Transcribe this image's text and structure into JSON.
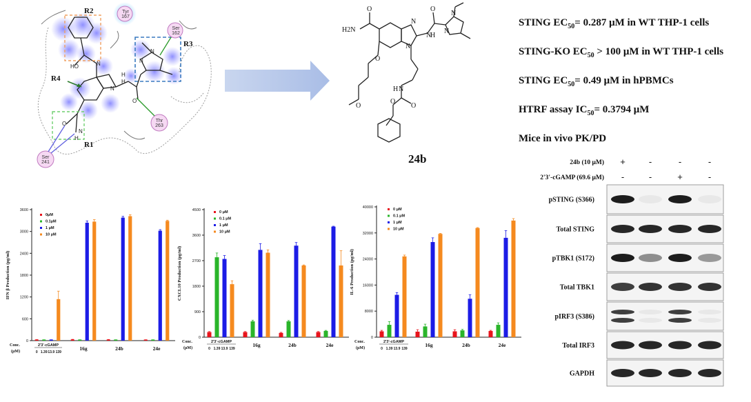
{
  "docking": {
    "r_labels": [
      "R2",
      "R3",
      "R4",
      "R1"
    ],
    "residues": [
      "Tyr 167",
      "Ser 162",
      "Thr 263",
      "Ser 241"
    ],
    "atom_labels": [
      "HO",
      "N",
      "H",
      "O",
      "N",
      "H",
      "O",
      "N",
      "H",
      "N",
      "N"
    ]
  },
  "compound": {
    "label": "24b",
    "atoms": [
      "H2N",
      "O",
      "N",
      "N",
      "N",
      "N",
      "H",
      "O",
      "N",
      "O",
      "O",
      "O",
      "N",
      "H",
      "O"
    ]
  },
  "properties": [
    {
      "pre": "STING EC",
      "sub": "50",
      "post": "= 0.287 μM in WT THP-1 cells"
    },
    {
      "pre": "STING-KO EC",
      "sub": "50",
      "post": " > 100 μM in WT THP-1 cells"
    },
    {
      "pre": "STING EC",
      "sub": "50",
      "post": "= 0.49 μM in hPBMCs"
    },
    {
      "pre": "HTRF assay IC",
      "sub": "50",
      "post": "= 0.3794 μM"
    },
    {
      "pre": "Mice in vivo PK/PD",
      "sub": "",
      "post": ""
    }
  ],
  "western": {
    "header_rows": [
      {
        "label": "24b (10 μM)",
        "marks": [
          "+",
          "-",
          "-",
          "-"
        ]
      },
      {
        "label": "2'3'-cGAMP (69.6 μM)",
        "marks": [
          "-",
          "-",
          "+",
          "-"
        ]
      }
    ],
    "blots": [
      {
        "label": "pSTING (S366)",
        "bands": [
          0.95,
          0.05,
          0.95,
          0.05
        ]
      },
      {
        "label": "Total STING",
        "bands": [
          0.9,
          0.9,
          0.9,
          0.9
        ]
      },
      {
        "label": "pTBK1 (S172)",
        "bands": [
          0.95,
          0.45,
          0.95,
          0.4
        ]
      },
      {
        "label": "Total TBK1",
        "bands": [
          0.8,
          0.85,
          0.85,
          0.85
        ]
      },
      {
        "label": "pIRF3 (S386)",
        "bands": [
          0.8,
          0.05,
          0.8,
          0.05
        ],
        "double": true
      },
      {
        "label": "Total IRF3",
        "bands": [
          0.9,
          0.9,
          0.9,
          0.9
        ]
      },
      {
        "label": "GAPDH",
        "bands": [
          0.9,
          0.9,
          0.9,
          0.9
        ]
      }
    ]
  },
  "chart_data": [
    {
      "type": "bar",
      "ylabel": "IFN β Production (pg/ml)",
      "ylim": [
        0,
        3600
      ],
      "yticks": [
        0,
        600,
        1200,
        1800,
        2400,
        3000,
        3600
      ],
      "series": [
        {
          "name": "0μM",
          "color": "#e8141c"
        },
        {
          "name": "0.1μM",
          "color": "#2ab52a"
        },
        {
          "name": "1 μM",
          "color": "#1c1ce6"
        },
        {
          "name": "10 μM",
          "color": "#f58a1f"
        }
      ],
      "groups": [
        {
          "label": "2'3'-cGAMP",
          "values": [
            20,
            20,
            20,
            1140
          ],
          "errors": [
            8,
            5,
            5,
            220
          ],
          "sublabels": [
            "0",
            "1.39",
            "13.9",
            "139"
          ]
        },
        {
          "label": "16g",
          "values": [
            30,
            20,
            3240,
            3270
          ],
          "errors": [
            5,
            5,
            50,
            55
          ]
        },
        {
          "label": "24b",
          "values": [
            25,
            20,
            3380,
            3420
          ],
          "errors": [
            5,
            5,
            35,
            40
          ]
        },
        {
          "label": "24e",
          "values": [
            20,
            20,
            3020,
            3290
          ],
          "errors": [
            5,
            5,
            30,
            20
          ]
        }
      ],
      "conc_label": [
        "Conc.",
        "(μM)"
      ]
    },
    {
      "type": "bar",
      "ylabel": "CXCL10 Production (pg/ml)",
      "ylim": [
        0,
        4500
      ],
      "yticks": [
        0,
        900,
        1800,
        2700,
        3600,
        4500
      ],
      "series": [
        {
          "name": "0 μM",
          "color": "#e8141c"
        },
        {
          "name": "0.1 μM",
          "color": "#2ab52a"
        },
        {
          "name": "1 μM",
          "color": "#1c1ce6"
        },
        {
          "name": "10 μM",
          "color": "#f58a1f"
        }
      ],
      "groups": [
        {
          "label": "2'3'-cGAMP",
          "values": [
            180,
            2820,
            2760,
            1870
          ],
          "errors": [
            20,
            150,
            120,
            120
          ],
          "sublabels": [
            "0",
            "1.39",
            "13.9",
            "139"
          ]
        },
        {
          "label": "16g",
          "values": [
            180,
            560,
            3080,
            2980
          ],
          "errors": [
            20,
            40,
            220,
            100
          ]
        },
        {
          "label": "24b",
          "values": [
            150,
            560,
            3230,
            2530
          ],
          "errors": [
            20,
            30,
            110,
            20
          ]
        },
        {
          "label": "24e",
          "values": [
            180,
            220,
            3900,
            2530
          ],
          "errors": [
            20,
            20,
            15,
            520
          ]
        }
      ],
      "conc_label": [
        "Conc.",
        "(μM)"
      ]
    },
    {
      "type": "bar",
      "ylabel": "IL-6 Production (pg/ml)",
      "ylim": [
        0,
        40000
      ],
      "yticks": [
        0,
        8000,
        16000,
        24000,
        32000,
        40000
      ],
      "series": [
        {
          "name": "0 μM",
          "color": "#e8141c"
        },
        {
          "name": "0.1 μM",
          "color": "#2ab52a"
        },
        {
          "name": "1 μM",
          "color": "#1c1ce6"
        },
        {
          "name": "10 μM",
          "color": "#f58a1f"
        }
      ],
      "groups": [
        {
          "label": "2'3'-cGAMP",
          "values": [
            1800,
            3800,
            13000,
            24800
          ],
          "errors": [
            300,
            1000,
            700,
            400
          ],
          "sublabels": [
            "0",
            "1.39",
            "13.9",
            "139"
          ]
        },
        {
          "label": "16g",
          "values": [
            1700,
            3300,
            29200,
            31700
          ],
          "errors": [
            600,
            700,
            1300,
            150
          ]
        },
        {
          "label": "24b",
          "values": [
            1800,
            2100,
            11800,
            33500
          ],
          "errors": [
            500,
            300,
            1200,
            150
          ]
        },
        {
          "label": "24e",
          "values": [
            1900,
            3800,
            30500,
            35800
          ],
          "errors": [
            200,
            600,
            2200,
            600
          ]
        }
      ],
      "conc_label": [
        "Conc.",
        "(μM)"
      ]
    }
  ]
}
